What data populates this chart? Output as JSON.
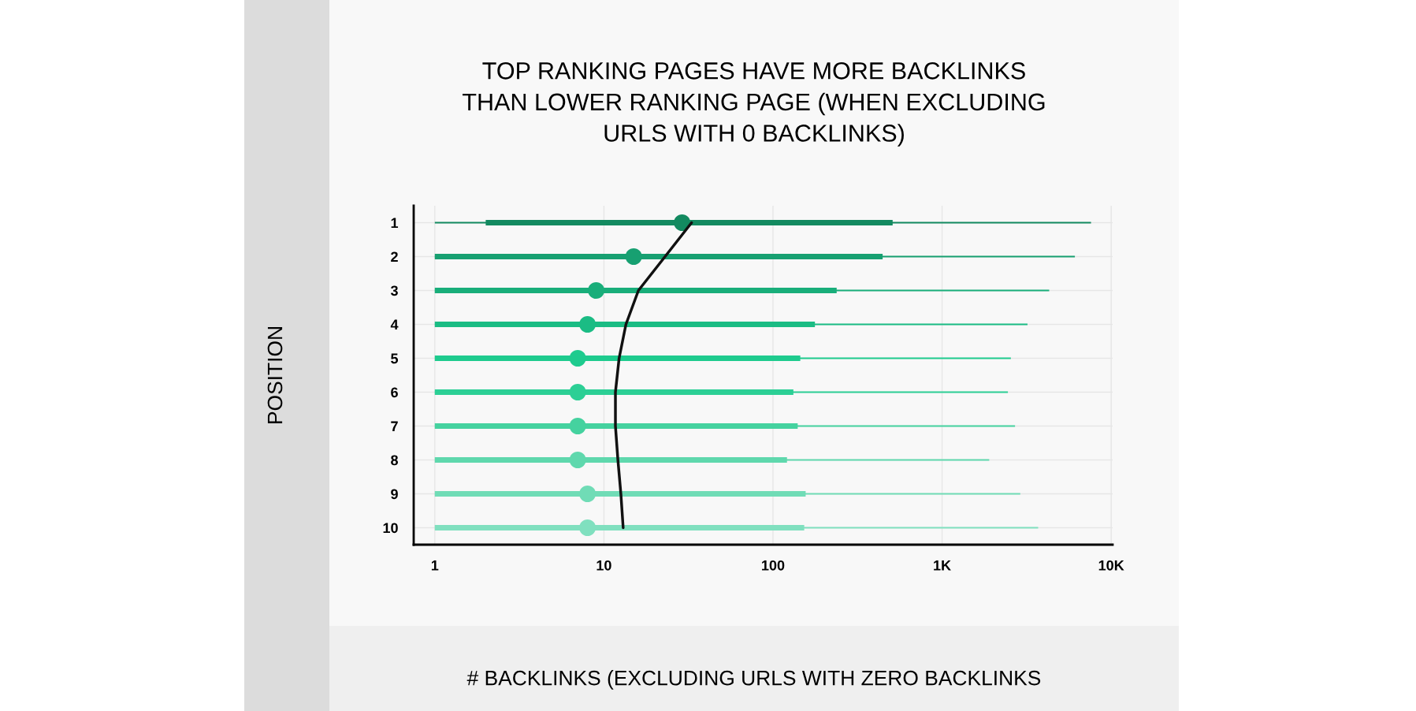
{
  "chart_data": {
    "type": "box",
    "orientation": "horizontal",
    "title": "TOP RANKING PAGES HAVE MORE BACKLINKS\nTHAN LOWER RANKING PAGE (WHEN EXCLUDING\nURLS WITH 0 BACKLINKS)",
    "xlabel": "# BACKLINKS (EXCLUDING URLS WITH ZERO BACKLINKS",
    "ylabel": "POSITION",
    "categories": [
      "1",
      "2",
      "3",
      "4",
      "5",
      "6",
      "7",
      "8",
      "9",
      "10"
    ],
    "log": "x",
    "xlim": [
      0.75,
      10200
    ],
    "xticks": [
      1,
      10,
      100,
      {
        "value": 1000,
        "label": "1K"
      },
      {
        "value": 10000,
        "label": "10K"
      }
    ],
    "grid": true,
    "series": [
      {
        "colors": [
          "#138a60",
          "#17a071",
          "#19ae7a",
          "#1bbc84",
          "#1ecb8e",
          "#2ccf95",
          "#45d29f",
          "#5fd8ad",
          "#70dcb6",
          "#80e0bf"
        ],
        "boxes": [
          {
            "low": 1,
            "q1": 2,
            "median": 29,
            "q3": 510,
            "high": 7600
          },
          {
            "low": 1,
            "q1": 1,
            "median": 15,
            "q3": 445,
            "high": 6100
          },
          {
            "low": 1,
            "q1": 1,
            "median": 9,
            "q3": 238,
            "high": 4300
          },
          {
            "low": 1,
            "q1": 1,
            "median": 8,
            "q3": 177,
            "high": 3200
          },
          {
            "low": 1,
            "q1": 1,
            "median": 7,
            "q3": 145,
            "high": 2550
          },
          {
            "low": 1,
            "q1": 1,
            "median": 7,
            "q3": 132,
            "high": 2450
          },
          {
            "low": 1,
            "q1": 1,
            "median": 7,
            "q3": 140,
            "high": 2700
          },
          {
            "low": 1,
            "q1": 1,
            "median": 7,
            "q3": 121,
            "high": 1900
          },
          {
            "low": 1,
            "q1": 1,
            "median": 8,
            "q3": 156,
            "high": 2900
          },
          {
            "low": 1,
            "q1": 1,
            "median": 8,
            "q3": 153,
            "high": 3700
          }
        ]
      },
      {
        "type": "line",
        "color": "#111111",
        "values": [
          33,
          23,
          16,
          13.5,
          12.3,
          11.7,
          11.7,
          12.1,
          12.6,
          13
        ]
      }
    ]
  }
}
